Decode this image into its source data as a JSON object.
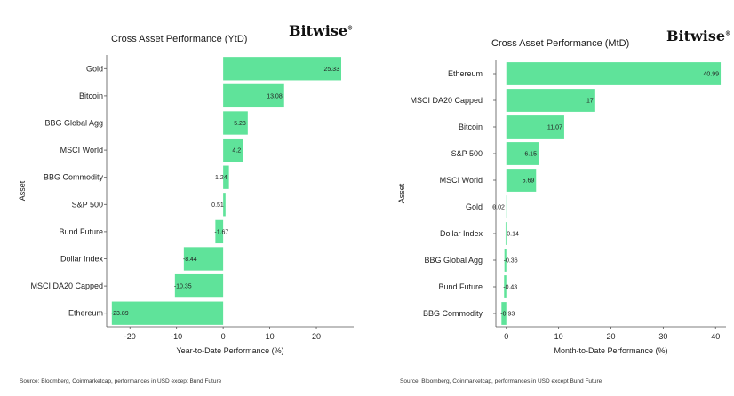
{
  "brand": "Bitwise",
  "brand_mark": "®",
  "colors": {
    "bar": "#5fe39a",
    "axis": "#555555",
    "text": "#222222"
  },
  "left": {
    "title": "Cross Asset Performance (YtD)",
    "source": "Source: Bloomberg, Coinmarketcap, performances in USD except Bund Future"
  },
  "right": {
    "title": "Cross Asset Performance (MtD)",
    "source": "Source: Bloomberg, Coinmarketcap, performances in USD except Bund Future"
  },
  "chart_data": [
    {
      "type": "bar",
      "orientation": "horizontal",
      "title": "Cross Asset Performance (YtD)",
      "xlabel": "Year-to-Date Performance (%)",
      "ylabel": "Asset",
      "categories": [
        "Gold",
        "Bitcoin",
        "BBG Global Agg",
        "MSCI World",
        "BBG Commodity",
        "S&P 500",
        "Bund Future",
        "Dollar Index",
        "MSCI DA20 Capped",
        "Ethereum"
      ],
      "values": [
        25.33,
        13.08,
        5.28,
        4.2,
        1.24,
        0.51,
        -1.67,
        -8.44,
        -10.35,
        -23.89
      ],
      "value_labels": [
        "25.33",
        "13.08",
        "5.28",
        "4.2",
        "1.24",
        "0.51",
        "-1.67",
        "-8.44",
        "-10.35",
        "-23.89"
      ],
      "xlim": [
        -25,
        28
      ],
      "xticks": [
        -20,
        -10,
        0,
        10,
        20
      ],
      "grid": false,
      "legend": "none"
    },
    {
      "type": "bar",
      "orientation": "horizontal",
      "title": "Cross Asset Performance (MtD)",
      "xlabel": "Month-to-Date Performance (%)",
      "ylabel": "Asset",
      "categories": [
        "Ethereum",
        "MSCI DA20 Capped",
        "Bitcoin",
        "S&P 500",
        "MSCI World",
        "Gold",
        "Dollar Index",
        "BBG Global Agg",
        "Bund Future",
        "BBG Commodity"
      ],
      "values": [
        40.99,
        17,
        11.07,
        6.15,
        5.69,
        0.02,
        -0.14,
        -0.36,
        -0.43,
        -0.93
      ],
      "value_labels": [
        "40.99",
        "17",
        "11.07",
        "6.15",
        "5.69",
        "0.02",
        "-0.14",
        "-0.36",
        "-0.43",
        "-0.93"
      ],
      "xlim": [
        -2,
        42
      ],
      "xticks": [
        0,
        10,
        20,
        30,
        40
      ],
      "grid": false,
      "legend": "none"
    }
  ]
}
